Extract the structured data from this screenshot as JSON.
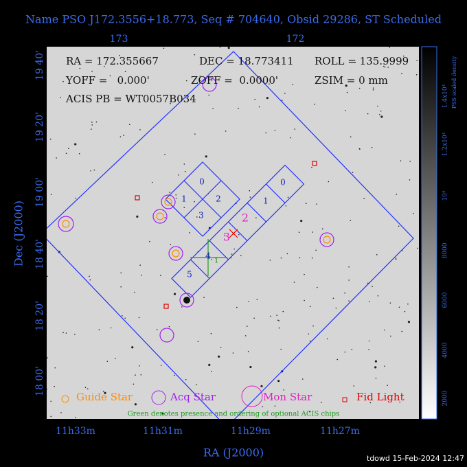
{
  "title": "Name PSO J172.3556+18.773, Seq # 704640, Obsid 29286, ST Scheduled",
  "top_axis": {
    "ticks": [
      "173",
      "172"
    ]
  },
  "left_axis": {
    "label": "Dec (J2000)",
    "ticks": [
      "19 40'",
      "19 20'",
      "19 00'",
      "18 40'",
      "18 20'",
      "18 00'"
    ]
  },
  "bottom_axis": {
    "label": "RA (J2000)",
    "ticks": [
      "11h33m",
      "11h31m",
      "11h29m",
      "11h27m"
    ]
  },
  "info": [
    "RA = 172.355667",
    "DEC = 18.773411",
    "ROLL = 135.9999",
    "YOFF =   0.000'",
    "ZOFF =  0.0000'",
    "ZSIM = 0 mm",
    "ACIS PB = WT0057B034"
  ],
  "chips": {
    "acis_i": [
      "0",
      "1",
      "2",
      "3"
    ],
    "acis_s": [
      "0",
      "1",
      "2",
      "3",
      "4",
      "5"
    ],
    "optional": "1"
  },
  "legend": [
    "Guide Star",
    "Acq Star",
    "Mon Star",
    "Fid Light"
  ],
  "note": "Green denotes presence and ordering of optional ACIS chips",
  "colorbar": {
    "label": "PSS scaled density",
    "ticks": [
      "1.4x10⁴",
      "1.2x10⁴",
      "10⁴",
      "8000",
      "6000",
      "4000",
      "2000"
    ]
  },
  "footer": "tdowd 15-Feb-2024 12:47"
}
